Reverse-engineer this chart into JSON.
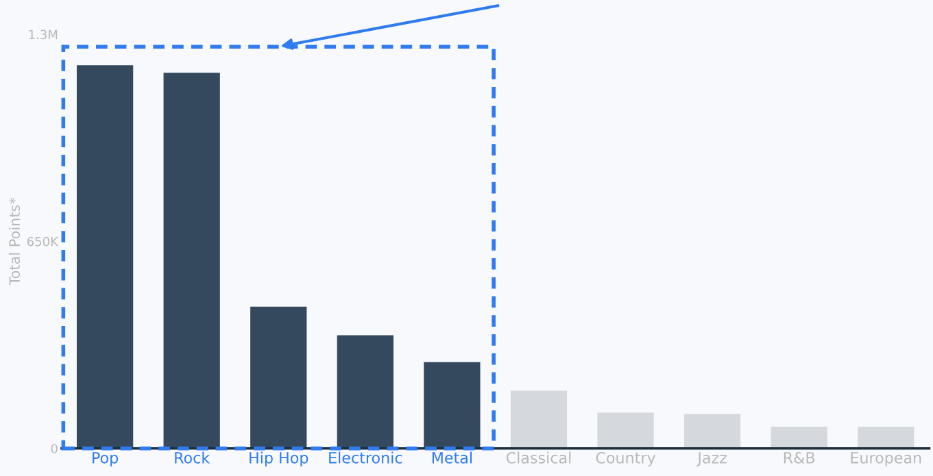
{
  "chart_data": {
    "type": "bar",
    "ylabel": "Total Points*",
    "categories": [
      "Pop",
      "Rock",
      "Hip Hop",
      "Electronic",
      "Metal",
      "Classical",
      "Country",
      "Jazz",
      "R&B",
      "European"
    ],
    "values": [
      1203000,
      1179000,
      445000,
      355000,
      271000,
      181000,
      112000,
      108000,
      68000,
      68000
    ],
    "colors": [
      "#34495e",
      "#34495e",
      "#34495e",
      "#34495e",
      "#34495e",
      "#d5d9de",
      "#d5d9de",
      "#d5d9de",
      "#d5d9de",
      "#d5d9de"
    ],
    "ylim": [
      0,
      1300000
    ],
    "yticks": [
      {
        "value": 0,
        "label": "0"
      },
      {
        "value": 650000,
        "label": "650K"
      },
      {
        "value": 1300000,
        "label": "1.3M"
      }
    ],
    "grid": false
  }
}
